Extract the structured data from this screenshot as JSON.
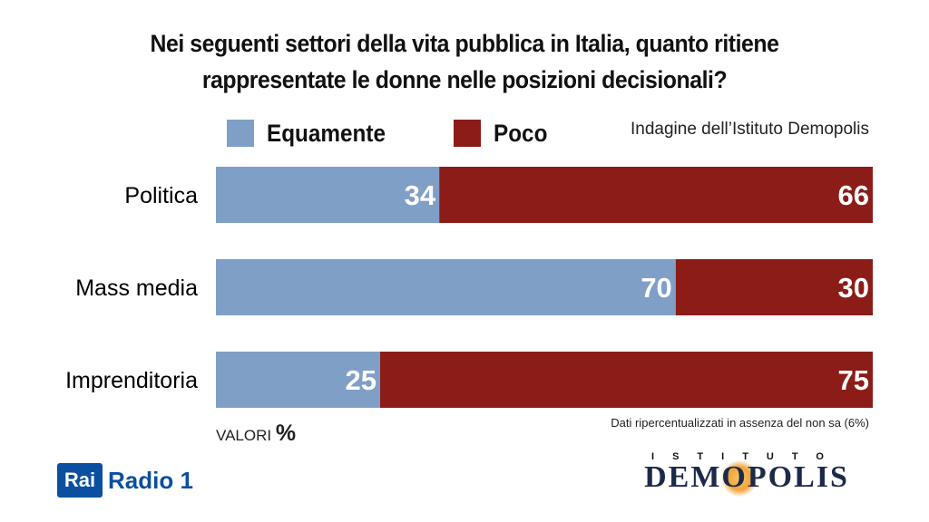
{
  "title": {
    "line1": "Nei seguenti settori della vita pubblica in Italia, quanto ritiene",
    "line2": "rappresentate le donne nelle posizioni decisionali?"
  },
  "source_label": "Indagine dell’Istituto Demopolis",
  "chart_data": {
    "type": "bar",
    "orientation": "horizontal",
    "stacked": true,
    "categories": [
      "Politica",
      "Mass media",
      "Imprenditoria"
    ],
    "series": [
      {
        "name": "Equamente",
        "values": [
          34,
          70,
          25
        ],
        "color": "#7f9fc7"
      },
      {
        "name": "Poco",
        "values": [
          66,
          30,
          75
        ],
        "color": "#8c1c18"
      }
    ],
    "xlim": [
      0,
      100
    ],
    "legend": "top-left",
    "grid": false
  },
  "unit": {
    "text": "VALORI",
    "symbol": "%"
  },
  "note": "Dati ripercentualizzati in assenza del non sa (6%)",
  "logos": {
    "rai_box": "Rai",
    "rai_channel": "Radio 1",
    "demopolis_top": "ISTITUTO",
    "demopolis_name": "DEMOPOLIS"
  }
}
